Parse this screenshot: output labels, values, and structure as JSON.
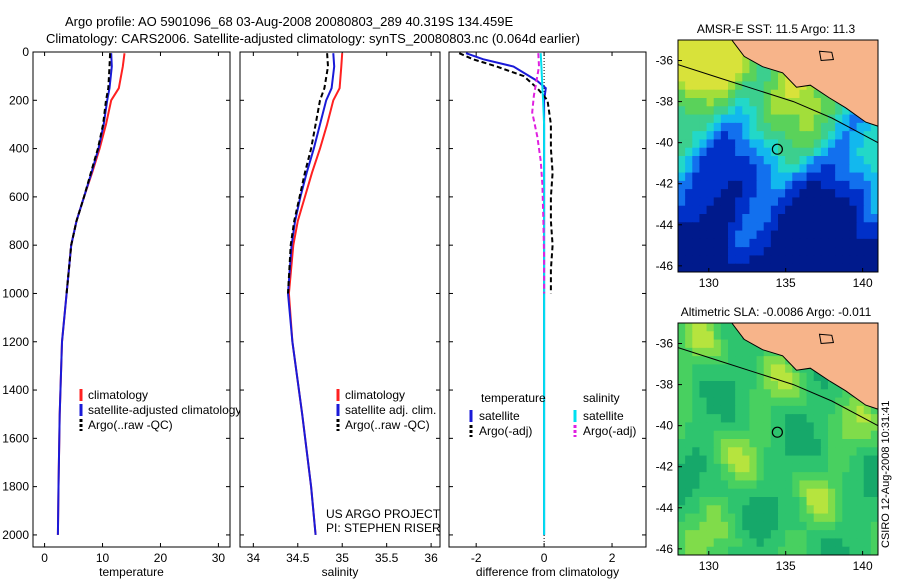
{
  "header": {
    "line1": "Argo profile: AO 5901096_68 03-Aug-2008 20080803_289 40.319S 134.459E",
    "line2": "Climatology: CARS2006. Satellite-adjusted climatology: synTS_20080803.nc (0.064d earlier)"
  },
  "stamp": "CSIRO 12-Aug-2008 10:31:41",
  "colors": {
    "red": "#ff2020",
    "blue": "#1a1ad8",
    "black": "#000000",
    "cyan": "#00e0f0",
    "magenta": "#e020e0",
    "land": "#f7b48a"
  },
  "chart_data": [
    {
      "type": "line",
      "xlabel": "temperature",
      "ylabel": "",
      "xlim": [
        -2,
        32
      ],
      "ylim": [
        2050,
        0
      ],
      "xticks": [
        0,
        10,
        20,
        30
      ],
      "yticks": [
        0,
        200,
        400,
        600,
        800,
        1000,
        1200,
        1400,
        1600,
        1800,
        2000
      ],
      "legend": {
        "placement": "lower-center",
        "entries": [
          "climatology",
          "satellite-adjusted climatology",
          "Argo(..raw -QC)"
        ]
      },
      "series": [
        {
          "name": "climatology",
          "color": "red",
          "dash": "",
          "x": [
            13.8,
            13.5,
            12.8,
            11.5,
            10.6,
            9.5,
            8.2,
            6.8,
            5.5,
            4.6,
            3.8,
            3.0,
            2.6,
            2.4,
            2.3
          ],
          "y": [
            5,
            60,
            150,
            200,
            300,
            400,
            500,
            600,
            700,
            800,
            1000,
            1200,
            1500,
            1800,
            2000
          ]
        },
        {
          "name": "satellite-adjusted climatology",
          "color": "blue",
          "dash": "",
          "x": [
            11.5,
            11.6,
            11.2,
            10.8,
            10.2,
            9.3,
            8.1,
            6.8,
            5.5,
            4.6,
            3.8,
            3.0,
            2.6,
            2.4,
            2.3
          ],
          "y": [
            5,
            60,
            150,
            200,
            300,
            400,
            500,
            600,
            700,
            800,
            1000,
            1200,
            1500,
            1800,
            2000
          ]
        },
        {
          "name": "Argo(..raw -QC)",
          "color": "black",
          "dash": "5,3",
          "x": [
            11.3,
            11.2,
            11.0,
            10.6,
            10.1,
            9.2,
            8.0,
            6.8,
            5.5,
            4.6,
            3.8
          ],
          "y": [
            5,
            60,
            150,
            200,
            300,
            400,
            500,
            600,
            700,
            800,
            1000
          ]
        }
      ]
    },
    {
      "type": "line",
      "xlabel": "salinity",
      "ylabel": "",
      "xlim": [
        33.85,
        36.1
      ],
      "ylim": [
        2050,
        0
      ],
      "xticks": [
        34,
        34.5,
        35,
        35.5,
        36
      ],
      "yticks": [
        0,
        200,
        400,
        600,
        800,
        1000,
        1200,
        1400,
        1600,
        1800,
        2000
      ],
      "legend": {
        "placement": "lower-center",
        "entries": [
          "climatology",
          "satellite adj. clim.",
          "Argo(..raw -QC)"
        ]
      },
      "annotation": [
        "US ARGO PROJECT",
        "PI: STEPHEN RISER"
      ],
      "series": [
        {
          "name": "climatology",
          "color": "red",
          "dash": "",
          "x": [
            35.0,
            34.99,
            34.97,
            34.9,
            34.83,
            34.75,
            34.66,
            34.58,
            34.5,
            34.45,
            34.4,
            34.44,
            34.55,
            34.65,
            34.7
          ],
          "y": [
            5,
            60,
            150,
            200,
            300,
            400,
            500,
            600,
            700,
            800,
            1000,
            1200,
            1500,
            1800,
            2000
          ]
        },
        {
          "name": "satellite adj. clim.",
          "color": "blue",
          "dash": "",
          "x": [
            34.9,
            34.91,
            34.88,
            34.82,
            34.75,
            34.68,
            34.6,
            34.53,
            34.47,
            34.43,
            34.39,
            34.44,
            34.55,
            34.65,
            34.7
          ],
          "y": [
            5,
            60,
            150,
            200,
            300,
            400,
            500,
            600,
            700,
            800,
            1000,
            1200,
            1500,
            1800,
            2000
          ]
        },
        {
          "name": "Argo(..raw -QC)",
          "color": "black",
          "dash": "5,3",
          "x": [
            34.83,
            34.84,
            34.8,
            34.75,
            34.7,
            34.65,
            34.58,
            34.52,
            34.46,
            34.42,
            34.39
          ],
          "y": [
            5,
            60,
            150,
            200,
            300,
            400,
            500,
            600,
            700,
            800,
            1000
          ]
        }
      ]
    },
    {
      "type": "line",
      "xlabel": "difference from climatology",
      "ylabel": "",
      "xlim": [
        -2.8,
        3.0
      ],
      "ylim": [
        2050,
        0
      ],
      "xticks": [
        -2,
        0,
        2
      ],
      "yticks": [
        0,
        200,
        400,
        600,
        800,
        1000,
        1200,
        1400,
        1600,
        1800,
        2000
      ],
      "legend": {
        "placement": "lower-center",
        "groups": [
          {
            "heading": "temperature",
            "entries": [
              "satellite",
              "Argo(-adj)"
            ]
          },
          {
            "heading": "salinity",
            "entries": [
              "satellite",
              "Argo(-adj)"
            ]
          }
        ]
      },
      "series": [
        {
          "name": "satellite",
          "group": "temperature",
          "color": "blue",
          "dash": "",
          "x": [
            -2.3,
            -1.8,
            -0.9,
            -0.2,
            0.05,
            0.0,
            0.0,
            0.0,
            0.0,
            0.0,
            0.0,
            0.0
          ],
          "y": [
            5,
            30,
            60,
            120,
            150,
            200,
            400,
            600,
            800,
            1000,
            1500,
            2000
          ]
        },
        {
          "name": "Argo(-adj)",
          "group": "temperature",
          "color": "black",
          "dash": "5,3",
          "x": [
            -2.5,
            -2.1,
            -1.4,
            -0.6,
            -0.2,
            0.1,
            0.2,
            0.2,
            0.25,
            0.2,
            0.2,
            0.25,
            0.2,
            0.2,
            0.2
          ],
          "y": [
            5,
            30,
            60,
            100,
            150,
            200,
            300,
            400,
            500,
            600,
            700,
            800,
            900,
            950,
            1000
          ]
        },
        {
          "name": "satellite",
          "group": "salinity",
          "color": "cyan",
          "dash": "",
          "x": [
            -0.1,
            -0.08,
            -0.05,
            -0.03,
            0.0,
            0.0,
            0.0,
            0.0,
            0.0,
            0.0
          ],
          "y": [
            5,
            60,
            150,
            200,
            300,
            600,
            1000,
            1400,
            1800,
            2000
          ]
        },
        {
          "name": "Argo(-adj)",
          "group": "salinity",
          "color": "magenta",
          "dash": "5,3",
          "x": [
            -0.17,
            -0.15,
            -0.3,
            -0.35,
            -0.2,
            -0.1,
            -0.05,
            -0.02,
            0.0,
            0.0
          ],
          "y": [
            5,
            60,
            180,
            250,
            350,
            450,
            550,
            700,
            850,
            1000
          ]
        }
      ]
    },
    {
      "type": "heatmap",
      "title": "AMSR-E SST: 11.5 Argo: 11.3",
      "xlim": [
        128,
        141
      ],
      "ylim": [
        -46.3,
        -35
      ],
      "xticks": [
        130,
        135,
        140
      ],
      "yticks": [
        -36,
        -38,
        -40,
        -42,
        -44,
        -46
      ],
      "marker": {
        "x": 134.459,
        "y": -40.319
      }
    },
    {
      "type": "heatmap",
      "title": "Altimetric SLA: -0.0086 Argo: -0.011",
      "xlim": [
        128,
        141
      ],
      "ylim": [
        -46.3,
        -35
      ],
      "xticks": [
        130,
        135,
        140
      ],
      "yticks": [
        -36,
        -38,
        -40,
        -42,
        -44,
        -46
      ],
      "marker": {
        "x": 134.459,
        "y": -40.319
      }
    }
  ]
}
